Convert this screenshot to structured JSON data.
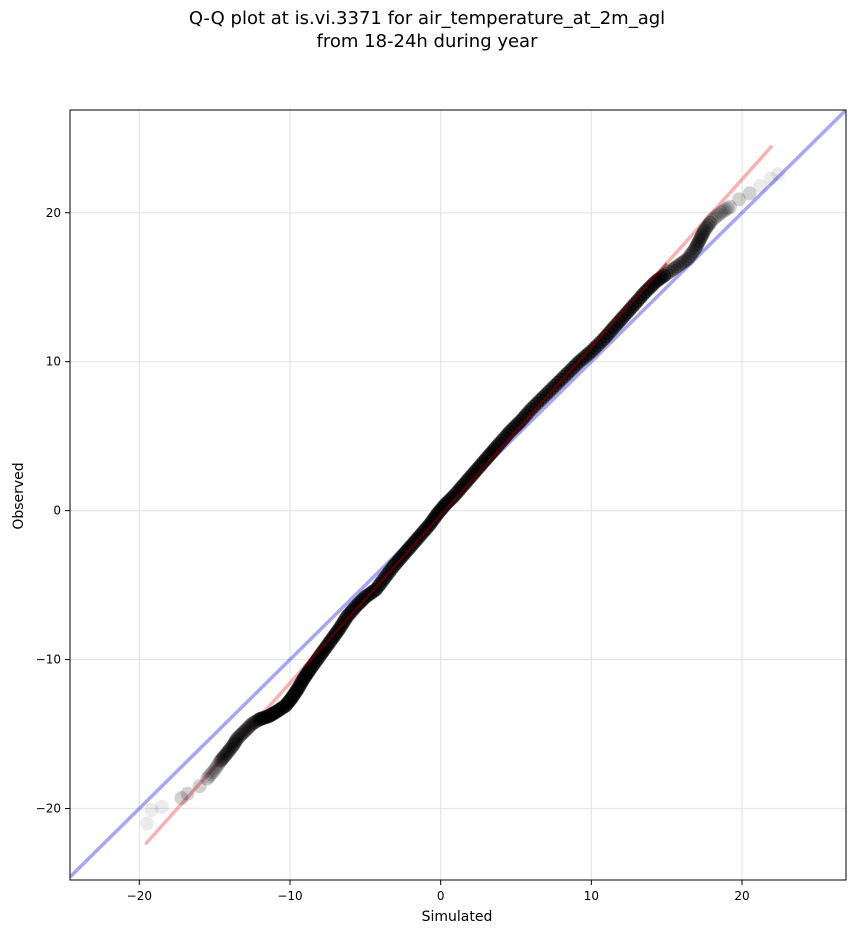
{
  "chart_data": {
    "type": "scatter",
    "title_line1": "Q-Q plot at is.vi.3371 for air_temperature_at_2m_agl",
    "title_line2": "from 18-24h during year",
    "xlabel": "Simulated",
    "ylabel": "Observed",
    "xlim": [
      -24.6,
      26.9
    ],
    "ylim": [
      -24.8,
      26.9
    ],
    "xticks": [
      -20,
      -10,
      0,
      10,
      20
    ],
    "xtick_labels": [
      "−20",
      "−10",
      "0",
      "10",
      "20"
    ],
    "yticks": [
      -20,
      -10,
      0,
      10,
      20
    ],
    "ytick_labels": [
      "−20",
      "−10",
      "0",
      "10",
      "20"
    ],
    "grid": true,
    "series": [
      {
        "kind": "points",
        "color": "#000000",
        "quantiles": [
          {
            "x": -19.5,
            "y": -21.0
          },
          {
            "x": -19.2,
            "y": -20.1
          },
          {
            "x": -18.5,
            "y": -19.9
          },
          {
            "x": -17.2,
            "y": -19.3
          },
          {
            "x": -16.8,
            "y": -19.0
          },
          {
            "x": -16.0,
            "y": -18.5
          },
          {
            "x": -15.5,
            "y": -18.0
          },
          {
            "x": -15.0,
            "y": -17.4
          },
          {
            "x": -14.6,
            "y": -16.8
          },
          {
            "x": -14.2,
            "y": -16.3
          },
          {
            "x": -13.8,
            "y": -15.8
          },
          {
            "x": -13.5,
            "y": -15.3
          },
          {
            "x": -13.0,
            "y": -14.8
          },
          {
            "x": -12.5,
            "y": -14.3
          },
          {
            "x": -12.0,
            "y": -14.0
          },
          {
            "x": -11.4,
            "y": -13.8
          },
          {
            "x": -10.9,
            "y": -13.5
          },
          {
            "x": -10.3,
            "y": -13.1
          },
          {
            "x": -9.9,
            "y": -12.6
          },
          {
            "x": -9.5,
            "y": -12.0
          },
          {
            "x": -9.1,
            "y": -11.3
          },
          {
            "x": -8.7,
            "y": -10.7
          },
          {
            "x": -8.2,
            "y": -10.0
          },
          {
            "x": -7.7,
            "y": -9.3
          },
          {
            "x": -7.2,
            "y": -8.6
          },
          {
            "x": -6.7,
            "y": -7.9
          },
          {
            "x": -6.2,
            "y": -7.1
          },
          {
            "x": -5.6,
            "y": -6.4
          },
          {
            "x": -5.0,
            "y": -5.8
          },
          {
            "x": -4.3,
            "y": -5.3
          },
          {
            "x": -3.7,
            "y": -4.5
          },
          {
            "x": -3.1,
            "y": -3.7
          },
          {
            "x": -2.5,
            "y": -3.0
          },
          {
            "x": -1.9,
            "y": -2.3
          },
          {
            "x": -1.3,
            "y": -1.6
          },
          {
            "x": -0.7,
            "y": -0.9
          },
          {
            "x": -0.2,
            "y": -0.2
          },
          {
            "x": 0.3,
            "y": 0.4
          },
          {
            "x": 0.9,
            "y": 1.0
          },
          {
            "x": 1.5,
            "y": 1.7
          },
          {
            "x": 2.1,
            "y": 2.4
          },
          {
            "x": 2.7,
            "y": 3.1
          },
          {
            "x": 3.3,
            "y": 3.8
          },
          {
            "x": 3.9,
            "y": 4.5
          },
          {
            "x": 4.6,
            "y": 5.3
          },
          {
            "x": 5.3,
            "y": 6.0
          },
          {
            "x": 6.0,
            "y": 6.8
          },
          {
            "x": 6.8,
            "y": 7.6
          },
          {
            "x": 7.6,
            "y": 8.4
          },
          {
            "x": 8.4,
            "y": 9.2
          },
          {
            "x": 9.2,
            "y": 10.0
          },
          {
            "x": 10.0,
            "y": 10.7
          },
          {
            "x": 10.8,
            "y": 11.5
          },
          {
            "x": 11.5,
            "y": 12.3
          },
          {
            "x": 12.2,
            "y": 13.1
          },
          {
            "x": 12.9,
            "y": 13.9
          },
          {
            "x": 13.6,
            "y": 14.7
          },
          {
            "x": 14.3,
            "y": 15.4
          },
          {
            "x": 15.0,
            "y": 15.9
          },
          {
            "x": 15.7,
            "y": 16.4
          },
          {
            "x": 16.4,
            "y": 16.9
          },
          {
            "x": 16.9,
            "y": 17.6
          },
          {
            "x": 17.2,
            "y": 18.2
          },
          {
            "x": 17.5,
            "y": 18.8
          },
          {
            "x": 18.0,
            "y": 19.5
          },
          {
            "x": 18.6,
            "y": 20.0
          },
          {
            "x": 19.2,
            "y": 20.4
          },
          {
            "x": 19.8,
            "y": 20.9
          },
          {
            "x": 20.5,
            "y": 21.3
          },
          {
            "x": 21.2,
            "y": 21.8
          },
          {
            "x": 21.9,
            "y": 22.3
          },
          {
            "x": 22.4,
            "y": 22.6
          }
        ]
      },
      {
        "kind": "line",
        "color": "#0000dd",
        "x": [
          -24.6,
          26.9
        ],
        "y": [
          -24.6,
          26.9
        ]
      },
      {
        "kind": "line",
        "color": "#ee2222",
        "x": [
          -19.6,
          22.0
        ],
        "y": [
          -22.4,
          24.5
        ]
      }
    ]
  }
}
